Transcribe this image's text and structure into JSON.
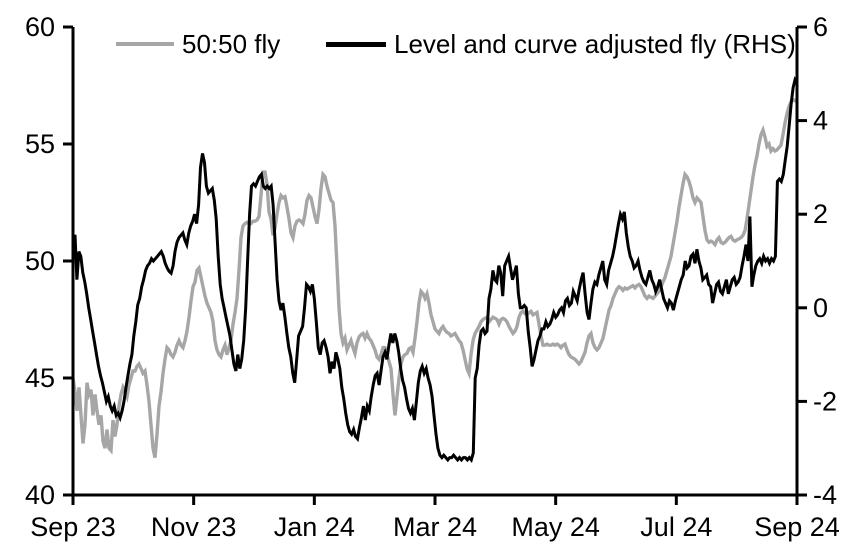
{
  "chart_data": {
    "type": "line",
    "title": "",
    "grid": false,
    "x_axis": {
      "unit": "months from Sep 2023",
      "range_months": [
        0,
        12
      ],
      "tick_positions_months": [
        0,
        2,
        4,
        6,
        8,
        10,
        12
      ],
      "tick_labels": [
        "Sep 23",
        "Nov 23",
        "Jan 24",
        "Mar 24",
        "May 24",
        "Jul 24",
        "Sep 24"
      ]
    },
    "y_axis_left": {
      "range": [
        40,
        60
      ],
      "ticks": [
        {
          "label": "60",
          "value": 60
        },
        {
          "label": "55",
          "value": 55
        },
        {
          "label": "50",
          "value": 50
        },
        {
          "label": "45",
          "value": 45
        },
        {
          "label": "40",
          "value": 40
        }
      ]
    },
    "y_axis_right": {
      "range": [
        -4,
        6
      ],
      "ticks": [
        {
          "label": "6",
          "value": 6
        },
        {
          "label": "4",
          "value": 4
        },
        {
          "label": "2",
          "value": 2
        },
        {
          "label": "0",
          "value": 0
        },
        {
          "label": "-2",
          "value": -2
        },
        {
          "label": "-4",
          "value": -4
        }
      ]
    },
    "legend": {
      "position": "top",
      "entries": [
        {
          "label": "50:50 fly",
          "color": "#a6a6a6"
        },
        {
          "label": "Level and curve adjusted fly (RHS)",
          "color": "#000000"
        }
      ]
    },
    "series": [
      {
        "name": "50:50 fly",
        "axis": "left",
        "color": "#a6a6a6",
        "stroke_width": 3.4,
        "x_start_months": 0,
        "x_end_months": 12,
        "values": [
          45.0,
          44.4,
          43.6,
          44.6,
          43.4,
          42.2,
          43.0,
          44.8,
          44.3,
          44.5,
          43.4,
          44.3,
          43.6,
          43.0,
          43.4,
          42.3,
          42.0,
          42.8,
          42.0,
          41.9,
          43.2,
          42.5,
          43.0,
          43.8,
          44.3,
          44.6,
          44.4,
          44.2,
          44.7,
          45.0,
          45.3,
          45.3,
          45.5,
          45.6,
          45.4,
          45.2,
          45.3,
          44.7,
          44.0,
          43.0,
          42.0,
          41.6,
          42.6,
          43.8,
          44.4,
          45.2,
          45.8,
          46.3,
          46.2,
          46.0,
          45.9,
          46.1,
          46.4,
          46.6,
          46.4,
          46.3,
          46.6,
          47.0,
          47.6,
          48.3,
          48.9,
          49.1,
          49.6,
          49.7,
          49.3,
          48.9,
          48.5,
          48.2,
          48.0,
          47.8,
          47.4,
          46.6,
          46.2,
          46.0,
          45.9,
          46.2,
          46.4,
          46.0,
          46.3,
          46.6,
          47.3,
          47.8,
          48.4,
          49.6,
          51.0,
          51.5,
          51.6,
          51.65,
          51.6,
          51.6,
          51.7,
          51.7,
          51.75,
          51.9,
          52.8,
          53.8,
          53.8,
          53.3,
          52.1,
          51.8,
          51.1,
          51.4,
          52.0,
          52.5,
          52.8,
          52.7,
          52.75,
          52.3,
          51.8,
          51.2,
          51.0,
          51.5,
          51.7,
          51.75,
          51.7,
          51.6,
          52.0,
          52.6,
          52.8,
          52.7,
          52.3,
          51.9,
          51.6,
          52.2,
          53.1,
          53.7,
          53.6,
          53.2,
          52.9,
          52.6,
          52.5,
          51.5,
          49.8,
          48.0,
          46.9,
          46.5,
          46.7,
          46.2,
          46.4,
          46.6,
          46.3,
          46.05,
          46.5,
          46.75,
          46.85,
          46.9,
          46.7,
          46.9,
          46.7,
          46.6,
          46.4,
          46.2,
          45.9,
          45.8,
          46.0,
          46.3,
          46.3,
          46.0,
          45.7,
          45.4,
          44.3,
          43.4,
          44.2,
          45.0,
          45.6,
          45.9,
          46.0,
          46.05,
          46.25,
          46.3,
          46.1,
          46.7,
          47.4,
          48.2,
          48.7,
          48.6,
          48.4,
          48.6,
          48.2,
          47.7,
          47.4,
          47.1,
          47.0,
          46.9,
          47.1,
          47.2,
          47.05,
          46.95,
          46.9,
          46.8,
          46.85,
          46.9,
          46.75,
          46.6,
          46.5,
          46.2,
          45.8,
          45.4,
          45.2,
          46.0,
          46.6,
          46.9,
          47.05,
          47.2,
          47.4,
          47.5,
          47.55,
          47.6,
          47.4,
          47.5,
          47.6,
          47.55,
          47.5,
          47.3,
          47.5,
          47.55,
          47.5,
          47.4,
          47.2,
          47.05,
          46.9,
          47.0,
          47.2,
          47.6,
          47.8,
          47.85,
          47.75,
          47.7,
          47.8,
          47.85,
          47.7,
          47.75,
          47.8,
          47.3,
          46.8,
          46.4,
          46.4,
          46.45,
          46.4,
          46.4,
          46.45,
          46.4,
          46.45,
          46.4,
          46.3,
          46.4,
          46.45,
          46.2,
          46.0,
          45.9,
          45.85,
          45.8,
          45.7,
          45.6,
          45.7,
          45.9,
          46.1,
          46.5,
          46.8,
          46.9,
          46.5,
          46.3,
          46.2,
          46.3,
          46.5,
          46.7,
          47.1,
          47.5,
          47.9,
          48.1,
          48.4,
          48.6,
          48.8,
          48.9,
          48.85,
          48.75,
          48.85,
          48.8,
          48.85,
          48.9,
          48.95,
          48.85,
          48.95,
          49.0,
          48.9,
          48.7,
          48.5,
          48.4,
          48.5,
          48.45,
          48.4,
          48.5,
          48.6,
          48.7,
          48.9,
          49.1,
          49.3,
          49.6,
          49.9,
          50.2,
          50.7,
          51.2,
          51.7,
          52.3,
          52.8,
          53.3,
          53.7,
          53.6,
          53.4,
          53.1,
          52.7,
          52.5,
          52.7,
          52.6,
          52.5,
          51.9,
          51.3,
          50.9,
          50.8,
          50.85,
          50.8,
          50.7,
          50.9,
          51.0,
          50.8,
          50.75,
          50.8,
          50.9,
          51.0,
          51.05,
          50.9,
          50.85,
          50.9,
          50.95,
          51.0,
          51.1,
          51.3,
          51.8,
          52.4,
          53.0,
          53.6,
          54.1,
          54.5,
          55.0,
          55.4,
          55.6,
          55.3,
          54.9,
          55.0,
          54.7,
          54.8,
          54.7,
          54.75,
          54.85,
          54.95,
          55.4,
          55.9,
          56.3,
          56.6,
          56.8,
          56.9,
          56.85,
          56.8
        ]
      },
      {
        "name": "Level and curve adjusted fly (RHS)",
        "axis": "right",
        "color": "#000000",
        "stroke_width": 3.0,
        "x_start_months": 0,
        "x_end_months": 12,
        "values": [
          1.3,
          1.56,
          0.6,
          1.2,
          1.1,
          0.75,
          0.55,
          0.3,
          0.0,
          -0.25,
          -0.5,
          -0.75,
          -1.0,
          -1.25,
          -1.45,
          -1.6,
          -1.8,
          -2.0,
          -1.9,
          -2.1,
          -2.2,
          -2.1,
          -2.3,
          -2.25,
          -2.35,
          -2.2,
          -2.0,
          -1.7,
          -1.45,
          -1.2,
          -1.0,
          -0.6,
          -0.3,
          0.06,
          0.2,
          0.45,
          0.6,
          0.8,
          0.9,
          0.95,
          1.05,
          1.0,
          1.05,
          1.1,
          1.15,
          1.2,
          1.1,
          0.95,
          0.85,
          0.78,
          0.74,
          0.9,
          1.2,
          1.4,
          1.5,
          1.55,
          1.6,
          1.45,
          1.35,
          1.6,
          1.75,
          1.85,
          2.0,
          1.8,
          2.2,
          3.0,
          3.3,
          3.1,
          2.6,
          2.45,
          2.5,
          2.55,
          2.3,
          1.9,
          1.1,
          0.5,
          0.2,
          0.0,
          -0.2,
          -0.4,
          -0.6,
          -0.9,
          -1.2,
          -1.35,
          -1.0,
          -1.3,
          -1.1,
          -0.7,
          0.0,
          1.0,
          2.0,
          2.6,
          2.65,
          2.6,
          2.7,
          2.8,
          2.85,
          2.6,
          2.55,
          2.6,
          2.55,
          2.6,
          2.2,
          1.4,
          0.6,
          0.15,
          -0.05,
          0.1,
          -0.2,
          -0.55,
          -0.85,
          -1.05,
          -1.4,
          -1.6,
          -1.1,
          -0.6,
          -0.5,
          -0.4,
          0.0,
          0.5,
          0.45,
          0.35,
          0.5,
          0.2,
          -0.3,
          -0.85,
          -1.0,
          -0.75,
          -0.7,
          -0.85,
          -1.05,
          -1.4,
          -1.15,
          -1.3,
          -0.95,
          -1.1,
          -1.3,
          -1.7,
          -1.95,
          -2.25,
          -2.5,
          -2.65,
          -2.7,
          -2.6,
          -2.75,
          -2.8,
          -2.55,
          -2.35,
          -2.1,
          -2.4,
          -2.1,
          -2.2,
          -1.9,
          -1.65,
          -1.45,
          -1.4,
          -1.65,
          -1.35,
          -1.05,
          -0.95,
          -1.1,
          -0.8,
          -0.55,
          -0.75,
          -0.55,
          -0.7,
          -0.95,
          -1.3,
          -1.55,
          -1.7,
          -1.95,
          -2.15,
          -2.25,
          -2.15,
          -2.4,
          -2.0,
          -1.6,
          -1.35,
          -1.25,
          -1.4,
          -1.3,
          -1.5,
          -1.65,
          -1.9,
          -2.3,
          -2.7,
          -3.0,
          -3.15,
          -3.2,
          -3.15,
          -3.2,
          -3.25,
          -3.2,
          -3.2,
          -3.15,
          -3.2,
          -3.25,
          -3.2,
          -3.25,
          -3.2,
          -3.2,
          -3.25,
          -3.2,
          -3.25,
          -3.1,
          -1.5,
          -1.3,
          -0.8,
          -0.5,
          -0.45,
          -0.55,
          -0.5,
          0.2,
          0.4,
          0.8,
          0.6,
          0.55,
          0.9,
          0.75,
          0.25,
          0.9,
          1.0,
          1.1,
          0.85,
          0.6,
          0.75,
          0.9,
          0.3,
          0.0,
          0.0,
          0.05,
          0.0,
          -0.5,
          -0.85,
          -1.25,
          -1.1,
          -0.9,
          -0.7,
          -0.6,
          -0.45,
          -0.45,
          -0.3,
          -0.4,
          -0.35,
          -0.25,
          -0.1,
          -0.2,
          -0.15,
          -0.05,
          0.0,
          -0.1,
          0.15,
          0.2,
          0.05,
          0.1,
          0.35,
          0.25,
          0.15,
          0.4,
          0.6,
          0.75,
          0.3,
          -0.1,
          -0.25,
          0.1,
          0.4,
          0.55,
          0.5,
          0.7,
          0.85,
          1.0,
          0.6,
          0.5,
          0.8,
          0.95,
          1.1,
          1.3,
          1.55,
          1.8,
          2.0,
          1.9,
          2.05,
          1.6,
          1.3,
          1.1,
          1.0,
          0.85,
          0.9,
          1.0,
          0.8,
          0.65,
          0.55,
          0.5,
          0.65,
          0.8,
          0.6,
          0.5,
          0.35,
          0.45,
          0.6,
          0.4,
          0.2,
          0.1,
          0.0,
          0.15,
          0.1,
          -0.05,
          0.15,
          0.3,
          0.45,
          0.6,
          0.7,
          1.0,
          0.85,
          0.9,
          1.1,
          1.15,
          0.95,
          1.25,
          1.0,
          0.85,
          0.6,
          0.65,
          0.7,
          0.5,
          0.45,
          0.1,
          0.3,
          0.5,
          0.55,
          0.35,
          0.3,
          0.45,
          0.6,
          0.3,
          0.45,
          0.6,
          0.65,
          0.5,
          0.55,
          0.65,
          0.9,
          1.1,
          1.35,
          1.0,
          1.95,
          0.45,
          0.7,
          0.9,
          1.0,
          1.05,
          0.95,
          1.1,
          1.0,
          1.05,
          0.95,
          1.05,
          1.0,
          1.1,
          2.7,
          2.75,
          2.7,
          2.85,
          3.15,
          3.45,
          3.9,
          4.35,
          4.7,
          4.87,
          4.8
        ]
      }
    ]
  }
}
